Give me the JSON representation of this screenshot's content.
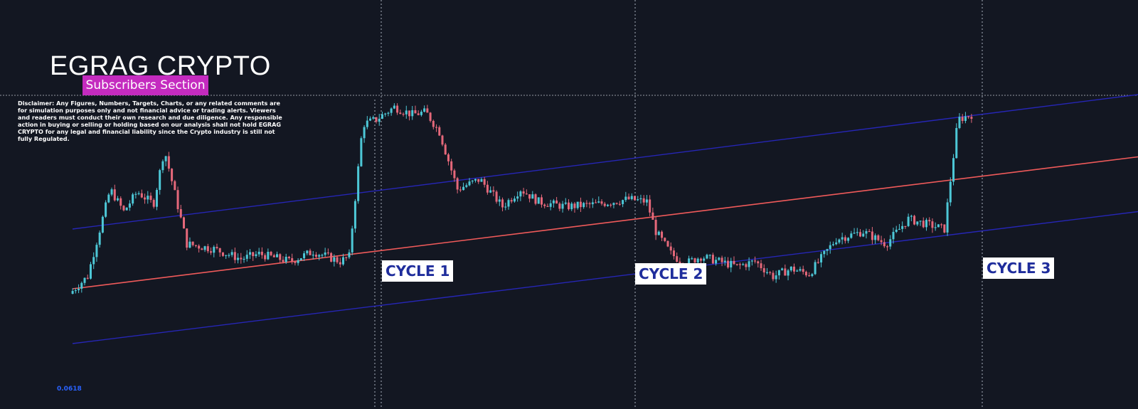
{
  "header": {
    "brand": "EGRAG CRYPTO",
    "badge": "Subscribers Section",
    "disclaimer": "Disclaimer: Any Figures, Numbers, Targets, Charts, or any related comments are for simulation purposes only and not financial advice or trading alerts. Viewers and readers must conduct their own research and due diligence. Any responsible action in buying or selling or holding based on our analysis shall not hold EGRAG CRYPTO for any legal and financial liability since the Crypto industry is still not fully Regulated."
  },
  "colors": {
    "background": "#131722",
    "candle_up": "#4dc7d6",
    "candle_down": "#e5687a",
    "mid_line": "#f05a5a",
    "channel_line": "#2626b5",
    "badge": "#c42bbf",
    "cycle_label_text": "#1f2d9c"
  },
  "chart_data": {
    "type": "candlestick",
    "title": "",
    "xlabel": "",
    "ylabel": "",
    "y_scale": "log",
    "grid": false,
    "cycle_labels": [
      "CYCLE 1",
      "CYCLE 2",
      "CYCLE 3"
    ],
    "bottom_mark": "0.0618",
    "price_path": [
      [
        0,
        0.2
      ],
      [
        0.02,
        0.27
      ],
      [
        0.045,
        0.62
      ],
      [
        0.06,
        0.53
      ],
      [
        0.075,
        0.61
      ],
      [
        0.093,
        0.56
      ],
      [
        0.105,
        0.78
      ],
      [
        0.13,
        0.4
      ],
      [
        0.16,
        0.38
      ],
      [
        0.19,
        0.34
      ],
      [
        0.21,
        0.36
      ],
      [
        0.245,
        0.33
      ],
      [
        0.27,
        0.37
      ],
      [
        0.3,
        0.33
      ],
      [
        0.31,
        0.35
      ],
      [
        0.325,
        0.88
      ],
      [
        0.34,
        0.9
      ],
      [
        0.36,
        0.95
      ],
      [
        0.38,
        0.92
      ],
      [
        0.395,
        0.93
      ],
      [
        0.41,
        0.85
      ],
      [
        0.43,
        0.62
      ],
      [
        0.455,
        0.66
      ],
      [
        0.48,
        0.55
      ],
      [
        0.5,
        0.62
      ],
      [
        0.52,
        0.57
      ],
      [
        0.55,
        0.55
      ],
      [
        0.585,
        0.56
      ],
      [
        0.62,
        0.58
      ],
      [
        0.64,
        0.57
      ],
      [
        0.65,
        0.45
      ],
      [
        0.667,
        0.36
      ],
      [
        0.682,
        0.32
      ],
      [
        0.7,
        0.35
      ],
      [
        0.72,
        0.33
      ],
      [
        0.74,
        0.31
      ],
      [
        0.76,
        0.33
      ],
      [
        0.78,
        0.27
      ],
      [
        0.8,
        0.3
      ],
      [
        0.82,
        0.28
      ],
      [
        0.85,
        0.42
      ],
      [
        0.88,
        0.45
      ],
      [
        0.905,
        0.4
      ],
      [
        0.93,
        0.5
      ],
      [
        0.95,
        0.48
      ],
      [
        0.97,
        0.46
      ],
      [
        0.985,
        0.9
      ],
      [
        1.0,
        0.92
      ]
    ],
    "channel": {
      "mid": {
        "start": [
          0,
          0.22
        ],
        "end": [
          1,
          0.75
        ]
      },
      "upper": {
        "start": [
          0,
          0.46
        ],
        "end": [
          1,
          1.0
        ]
      },
      "lower": {
        "start": [
          0,
          0.0
        ],
        "end": [
          1,
          0.53
        ]
      }
    }
  }
}
